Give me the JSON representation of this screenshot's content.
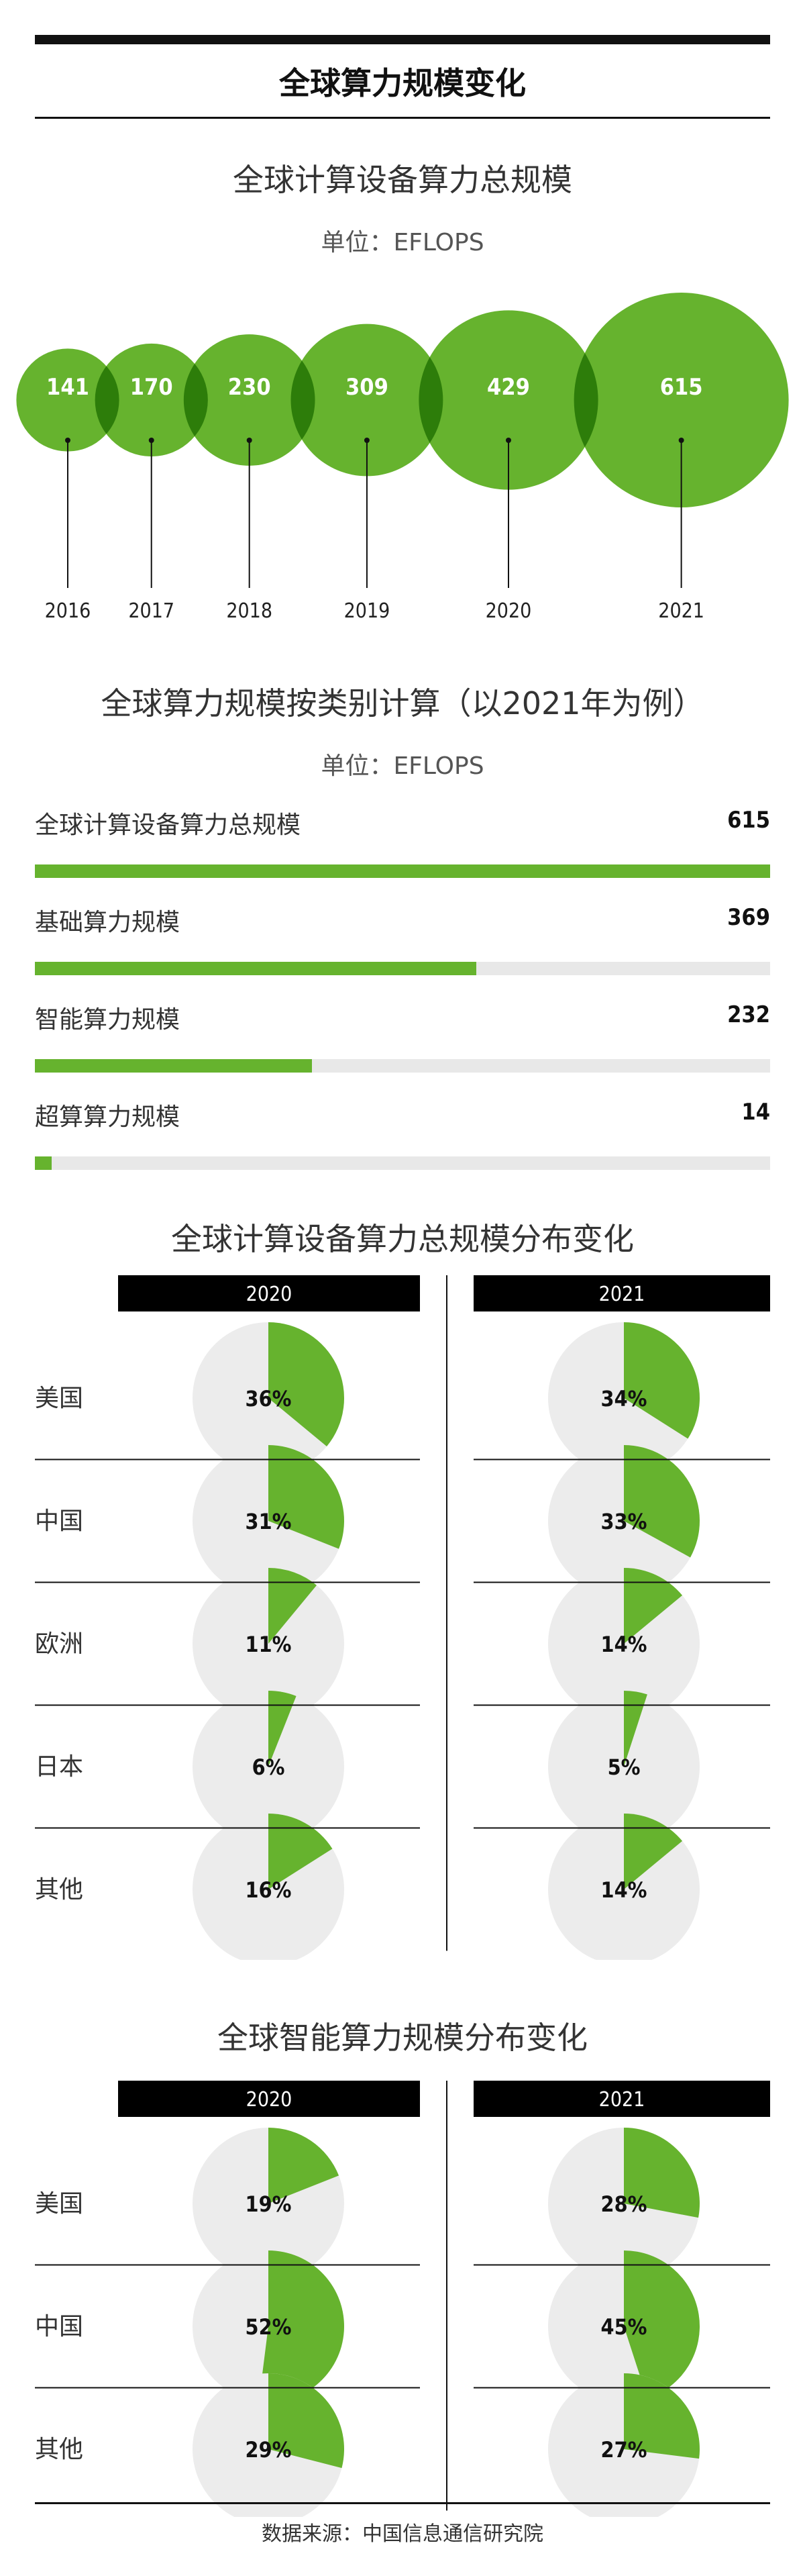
{
  "page": {
    "title": "全球算力规模变化",
    "source": "数据来源：中国信息通信研究院",
    "accent_color": "#66b32e",
    "overlap_color": "#2d7d0a",
    "pie_bg_color": "#ececec"
  },
  "section1": {
    "title": "全球计算设备算力总规模",
    "unit": "单位：EFLOPS"
  },
  "section2": {
    "title": "全球算力规模按类别计算（以2021年为例）",
    "unit": "单位：EFLOPS"
  },
  "section3": {
    "title": "全球计算设备算力总规模分布变化"
  },
  "section4": {
    "title": "全球智能算力规模分布变化"
  },
  "chart_data": [
    {
      "type": "bubble",
      "title": "全球计算设备算力总规模",
      "unit": "EFLOPS",
      "x": [
        "2016",
        "2017",
        "2018",
        "2019",
        "2020",
        "2021"
      ],
      "values": [
        141,
        170,
        230,
        309,
        429,
        615
      ],
      "labels": [
        "141",
        "170",
        "230",
        "309",
        "429",
        "615"
      ]
    },
    {
      "type": "bar",
      "title": "全球算力规模按类别计算（以2021年为例）",
      "unit": "EFLOPS",
      "categories": [
        "全球计算设备算力总规模",
        "基础算力规模",
        "智能算力规模",
        "超算算力规模"
      ],
      "values": [
        615,
        369,
        232,
        14
      ],
      "labels": [
        "615",
        "369",
        "232",
        "14"
      ],
      "xlim": [
        0,
        615
      ]
    },
    {
      "type": "pie",
      "title": "全球计算设备算力总规模分布变化",
      "categories": [
        "美国",
        "中国",
        "欧洲",
        "日本",
        "其他"
      ],
      "series": [
        {
          "name": "2020",
          "values": [
            36,
            31,
            11,
            6,
            16
          ],
          "labels": [
            "36%",
            "31%",
            "11%",
            "6%",
            "16%"
          ]
        },
        {
          "name": "2021",
          "values": [
            34,
            33,
            14,
            5,
            14
          ],
          "labels": [
            "34%",
            "33%",
            "14%",
            "5%",
            "14%"
          ]
        }
      ]
    },
    {
      "type": "pie",
      "title": "全球智能算力规模分布变化",
      "categories": [
        "美国",
        "中国",
        "其他"
      ],
      "series": [
        {
          "name": "2020",
          "values": [
            19,
            52,
            29
          ],
          "labels": [
            "19%",
            "52%",
            "29%"
          ]
        },
        {
          "name": "2021",
          "values": [
            28,
            45,
            27
          ],
          "labels": [
            "28%",
            "45%",
            "27%"
          ]
        }
      ]
    }
  ]
}
